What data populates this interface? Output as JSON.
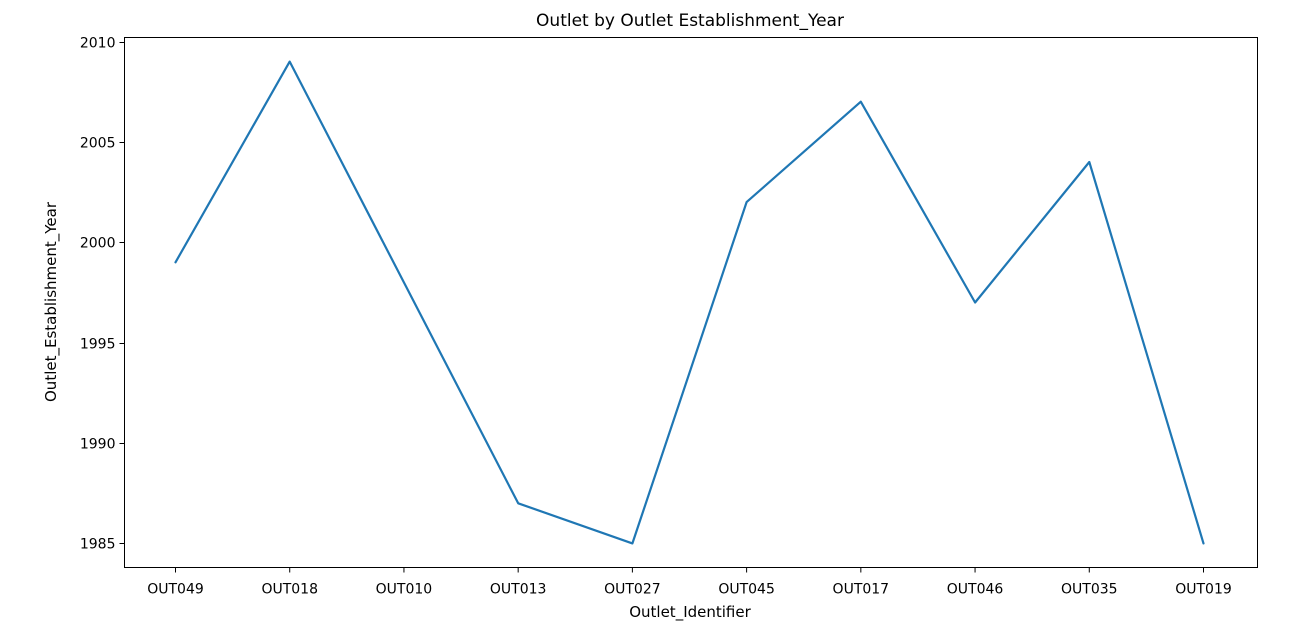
{
  "chart_data": {
    "type": "line",
    "title": "Outlet by Outlet Establishment_Year",
    "xlabel": "Outlet_Identifier",
    "ylabel": "Outlet_Establishment_Year",
    "categories": [
      "OUT049",
      "OUT018",
      "OUT010",
      "OUT013",
      "OUT027",
      "OUT045",
      "OUT017",
      "OUT046",
      "OUT035",
      "OUT019"
    ],
    "series": [
      {
        "values": [
          1999,
          2009,
          1998,
          1987,
          1985,
          2002,
          2007,
          1997,
          2004,
          1985
        ],
        "color": "#1f77b4"
      }
    ],
    "yticks": [
      1985,
      1990,
      1995,
      2000,
      2005,
      2010
    ],
    "ylim": [
      1983.8,
      2010.2
    ],
    "grid": false,
    "legend": false
  }
}
